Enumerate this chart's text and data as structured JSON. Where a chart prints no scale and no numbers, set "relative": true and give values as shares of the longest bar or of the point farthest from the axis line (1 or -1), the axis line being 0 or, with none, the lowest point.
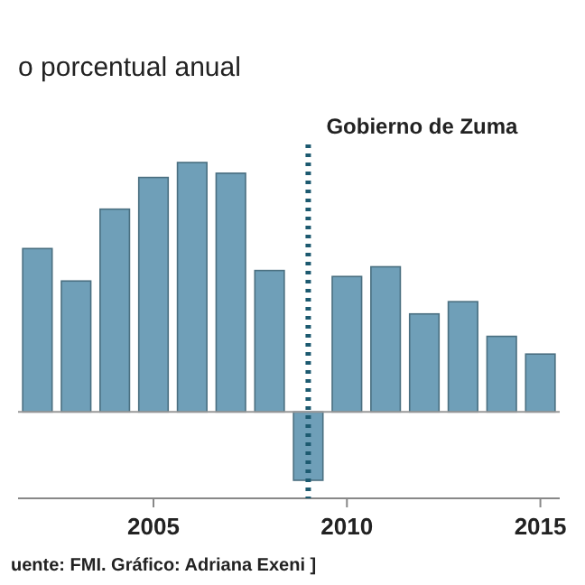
{
  "chart_data": {
    "type": "bar",
    "title": "o porcentual anual",
    "relative": true,
    "x": [
      2002,
      2003,
      2004,
      2005,
      2006,
      2007,
      2008,
      2009,
      2010,
      2011,
      2012,
      2013,
      2014,
      2015
    ],
    "xlim": [
      2001.5,
      2015.5
    ],
    "xticks": [
      2005,
      2010,
      2015
    ],
    "values": [
      0.655,
      0.525,
      0.813,
      0.94,
      1,
      0.957,
      0.567,
      -0.274,
      0.543,
      0.582,
      0.393,
      0.442,
      0.303,
      0.232
    ],
    "color": "#6f9fb8",
    "ref_lines": [
      {
        "axis": "x",
        "value": 2009,
        "label": "Gobierno de Zuma",
        "color": "#1d5a70",
        "line_style": "dotted"
      }
    ],
    "annotations": [
      "uente: FMI. Gráfico: Adriana Exeni ]"
    ]
  }
}
